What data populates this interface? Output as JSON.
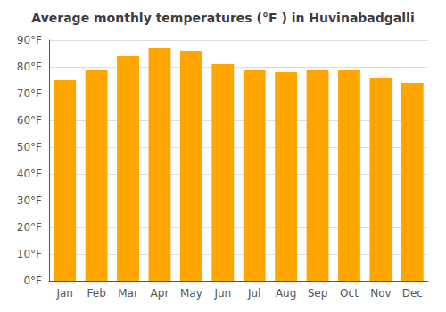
{
  "chart_data": {
    "type": "bar",
    "title": "Average monthly temperatures (°F ) in Huvinabadgalli",
    "categories": [
      "Jan",
      "Feb",
      "Mar",
      "Apr",
      "May",
      "Jun",
      "Jul",
      "Aug",
      "Sep",
      "Oct",
      "Nov",
      "Dec"
    ],
    "values": [
      75,
      79,
      84,
      87,
      86,
      81,
      79,
      78,
      79,
      79,
      76,
      74
    ],
    "color": "#FFA500",
    "ylim": [
      0,
      90
    ],
    "yticks": [
      {
        "value": 0,
        "label": "0°F"
      },
      {
        "value": 10,
        "label": "10°F"
      },
      {
        "value": 20,
        "label": "20°F"
      },
      {
        "value": 30,
        "label": "30°F"
      },
      {
        "value": 40,
        "label": "40°F"
      },
      {
        "value": 50,
        "label": "50°F"
      },
      {
        "value": 60,
        "label": "60°F"
      },
      {
        "value": 70,
        "label": "70°F"
      },
      {
        "value": 80,
        "label": "80°F"
      },
      {
        "value": 90,
        "label": "90°F"
      }
    ],
    "grid": true
  }
}
